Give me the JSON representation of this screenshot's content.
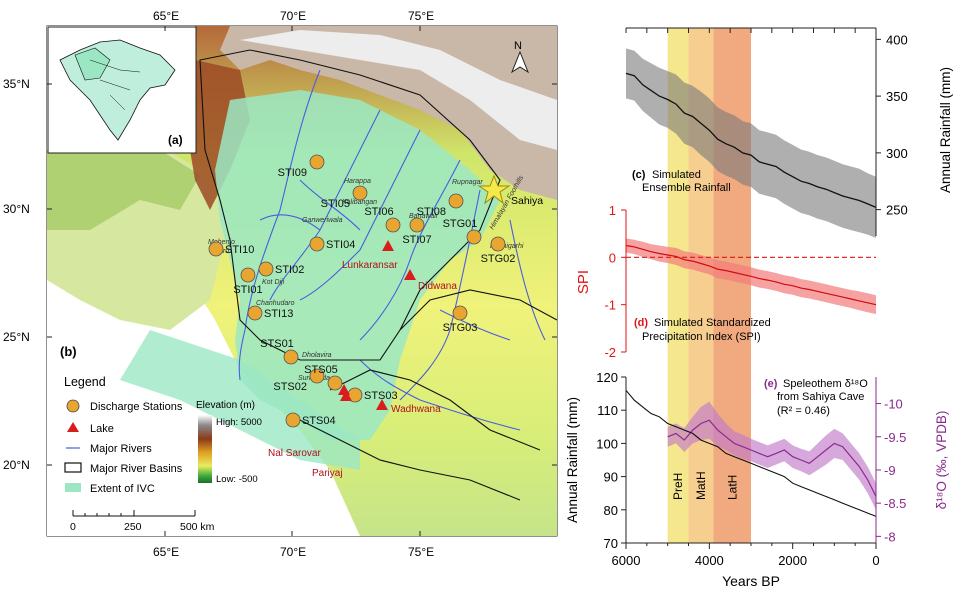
{
  "colors": {
    "ivc": "#9be7c4",
    "river": "#4a5de0",
    "station": "#e8a631",
    "lake": "#d81d1d",
    "star": "#f4e84a",
    "ensemble": "#111111",
    "spi": "#e11414",
    "speleo": "#8a2a8e",
    "preh": "#f2e37a",
    "math": "#f4c67c",
    "lath": "#ef9a6a"
  },
  "map": {
    "lon_ticks": [
      "65°E",
      "70°E",
      "75°E"
    ],
    "lat_ticks": [
      "35°N",
      "30°N",
      "25°N",
      "20°N"
    ],
    "panel_a": "(a)",
    "panel_b": "(b)",
    "stations": [
      {
        "name": "STI09"
      },
      {
        "name": "STI05"
      },
      {
        "name": "STI06"
      },
      {
        "name": "STI08"
      },
      {
        "name": "STG01"
      },
      {
        "name": "STI10"
      },
      {
        "name": "STI04"
      },
      {
        "name": "STI07"
      },
      {
        "name": "STG02"
      },
      {
        "name": "STI02"
      },
      {
        "name": "STI01"
      },
      {
        "name": "STI13"
      },
      {
        "name": "STG03"
      },
      {
        "name": "STS01"
      },
      {
        "name": "STS02"
      },
      {
        "name": "STS05"
      },
      {
        "name": "STS03"
      },
      {
        "name": "STS04"
      }
    ],
    "lakes": [
      "Lunkaransar",
      "Didwana",
      "Wadhwana",
      "Nal Sarovar",
      "Pariyaj"
    ],
    "sahiya": "Sahiya",
    "sites": [
      "Harappa",
      "Rupnagar",
      "Kalibangan",
      "Banawali",
      "Rakhigarhi",
      "Ganweriwala",
      "Mohenjo Daro",
      "Kot Diji",
      "Chanhudaro",
      "Dholavira",
      "Surkotada"
    ],
    "foothills": "Himalayan Foothills",
    "legend": {
      "title": "Legend",
      "items": [
        "Discharge Stations",
        "Lake",
        "Major Rivers",
        "Major River Basins",
        "Extent of IVC"
      ],
      "elevation_title": "Elevation (m)",
      "high": "High: 5000",
      "low": "Low: -500"
    },
    "scale": {
      "ticks": [
        "0",
        "250",
        "500 km"
      ]
    },
    "north": "N"
  },
  "chart_data": [
    {
      "type": "area",
      "id": "c",
      "panel_label": "(c)",
      "title": "Simulated Ensemble Rainfall",
      "ylabel": "Annual Rainfall (mm)",
      "ylim": [
        225,
        410
      ],
      "yticks": [
        250,
        300,
        350,
        400
      ],
      "x": [
        6000,
        5800,
        5600,
        5400,
        5200,
        5000,
        4800,
        4600,
        4400,
        4200,
        4000,
        3800,
        3600,
        3400,
        3200,
        3000,
        2800,
        2600,
        2400,
        2200,
        2000,
        1800,
        1600,
        1400,
        1200,
        1000,
        800,
        600,
        400,
        200,
        0
      ],
      "mean": [
        370,
        368,
        360,
        355,
        350,
        347,
        343,
        335,
        332,
        326,
        320,
        312,
        308,
        305,
        300,
        298,
        292,
        290,
        288,
        283,
        279,
        275,
        273,
        270,
        268,
        265,
        262,
        260,
        258,
        255,
        252
      ],
      "half_width": [
        22,
        22,
        23,
        24,
        25,
        25,
        26,
        27,
        27,
        28,
        28,
        28,
        28,
        28,
        28,
        28,
        28,
        28,
        28,
        28,
        28,
        28,
        28,
        28,
        28,
        28,
        28,
        28,
        28,
        27,
        27
      ]
    },
    {
      "type": "area",
      "id": "d",
      "panel_label": "(d)",
      "title": "Simulated Standardized Precipitation Index (SPI)",
      "ylabel": "SPI",
      "ylim": [
        -2,
        1
      ],
      "yticks": [
        -2,
        -1,
        0,
        1
      ],
      "x": [
        6000,
        5800,
        5600,
        5400,
        5200,
        5000,
        4800,
        4600,
        4400,
        4200,
        4000,
        3800,
        3600,
        3400,
        3200,
        3000,
        2800,
        2600,
        2400,
        2200,
        2000,
        1800,
        1600,
        1400,
        1200,
        1000,
        800,
        600,
        400,
        200,
        0
      ],
      "mean": [
        0.25,
        0.22,
        0.17,
        0.12,
        0.08,
        0.05,
        0.02,
        -0.05,
        -0.08,
        -0.13,
        -0.18,
        -0.25,
        -0.28,
        -0.32,
        -0.36,
        -0.4,
        -0.45,
        -0.48,
        -0.52,
        -0.57,
        -0.6,
        -0.65,
        -0.68,
        -0.72,
        -0.76,
        -0.8,
        -0.84,
        -0.88,
        -0.92,
        -0.96,
        -1.0
      ],
      "half_width": [
        0.15,
        0.15,
        0.16,
        0.16,
        0.17,
        0.17,
        0.18,
        0.18,
        0.18,
        0.18,
        0.18,
        0.19,
        0.19,
        0.19,
        0.19,
        0.19,
        0.19,
        0.19,
        0.19,
        0.19,
        0.19,
        0.19,
        0.19,
        0.19,
        0.19,
        0.19,
        0.19,
        0.19,
        0.2,
        0.2,
        0.2
      ]
    },
    {
      "type": "line",
      "id": "e",
      "panel_label": "(e)",
      "title": "Speleothem δ¹⁸O from Sahiya Cave",
      "note": "(R² = 0.46)",
      "xlabel": "Years BP",
      "xlim": [
        6000,
        0
      ],
      "xticks": [
        6000,
        4000,
        2000,
        0
      ],
      "ylabel_left": "Annual Rainfall (mm)",
      "ylim_left": [
        70,
        120
      ],
      "yticks_left": [
        70,
        80,
        90,
        100,
        110,
        120
      ],
      "ylabel_right": "δ¹⁸O (‰, VPDB)",
      "ylim_right": [
        -7.9,
        -10.4
      ],
      "yticks_right": [
        -8,
        -8.5,
        -9,
        -9.5,
        -10
      ],
      "rainfall": {
        "x": [
          6000,
          5800,
          5600,
          5400,
          5200,
          5000,
          4800,
          4600,
          4400,
          4200,
          4000,
          3800,
          3600,
          3400,
          3200,
          3000,
          2800,
          2600,
          2400,
          2200,
          2000,
          1800,
          1600,
          1400,
          1200,
          1000,
          800,
          600,
          400,
          200,
          0
        ],
        "y": [
          116,
          113,
          111,
          109,
          108,
          106,
          105,
          104,
          103,
          101,
          100,
          99,
          97,
          96,
          95,
          94,
          93,
          92,
          91,
          90,
          88,
          87,
          86,
          85,
          84,
          83,
          82,
          81,
          80,
          79,
          78
        ]
      },
      "d18O": {
        "x": [
          5000,
          4800,
          4600,
          4400,
          4200,
          4000,
          3800,
          3600,
          3400,
          3200,
          3000,
          2800,
          2600,
          2400,
          2200,
          2000,
          1800,
          1600,
          1400,
          1200,
          1000,
          800,
          600,
          400,
          200,
          0
        ],
        "y": [
          -9.5,
          -9.55,
          -9.45,
          -9.6,
          -9.7,
          -9.75,
          -9.6,
          -9.5,
          -9.4,
          -9.35,
          -9.3,
          -9.25,
          -9.2,
          -9.25,
          -9.3,
          -9.2,
          -9.15,
          -9.1,
          -9.2,
          -9.3,
          -9.4,
          -9.35,
          -9.2,
          -9.05,
          -8.85,
          -8.6
        ],
        "half_width": [
          0.15,
          0.15,
          0.18,
          0.2,
          0.25,
          0.28,
          0.25,
          0.2,
          0.18,
          0.18,
          0.17,
          0.17,
          0.17,
          0.17,
          0.17,
          0.17,
          0.17,
          0.18,
          0.2,
          0.22,
          0.22,
          0.2,
          0.2,
          0.2,
          0.2,
          0.2
        ]
      }
    }
  ],
  "periods": [
    {
      "label": "PreH",
      "from": 5000,
      "to": 4500
    },
    {
      "label": "MatH",
      "from": 4500,
      "to": 3900
    },
    {
      "label": "LatH",
      "from": 3900,
      "to": 3000
    }
  ]
}
